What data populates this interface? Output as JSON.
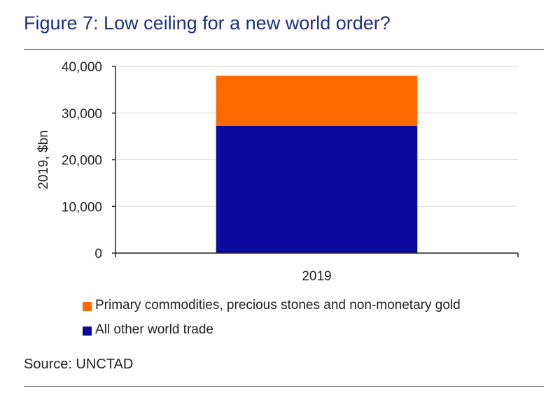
{
  "figure": {
    "title": "Figure 7: Low ceiling for a new world order?",
    "source": "Source: UNCTAD",
    "title_color": "#1c2f82"
  },
  "chart_data": {
    "type": "bar",
    "stacked": true,
    "categories": [
      "2019"
    ],
    "series": [
      {
        "name": "All other world trade",
        "values": [
          27300
        ],
        "color": "#0a0a9c"
      },
      {
        "name": "Primary commodities, precious stones and non-monetary gold",
        "values": [
          10700
        ],
        "color": "#ff6a00"
      }
    ],
    "ylabel": "2019, $bn",
    "xlabel": "",
    "ylim": [
      0,
      40000
    ],
    "yticks": [
      0,
      10000,
      20000,
      30000,
      40000
    ],
    "ytick_labels": [
      "0",
      "10,000",
      "20,000",
      "30,000",
      "40,000"
    ],
    "grid": true,
    "legend_position": "bottom-left",
    "legend_order": [
      1,
      0
    ]
  }
}
